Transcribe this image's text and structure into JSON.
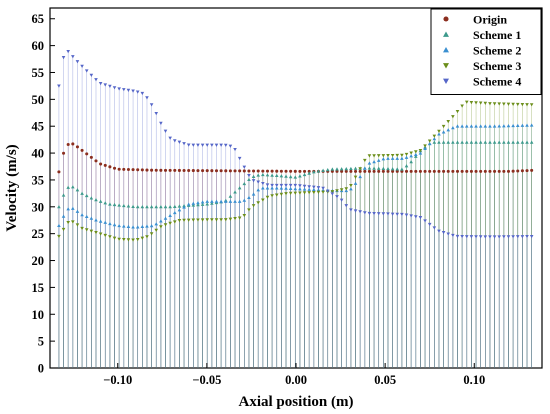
{
  "chart_data": {
    "type": "scatter",
    "xlabel": "Axial position (m)",
    "ylabel": "Velocity (m/s)",
    "xlim": [
      -0.138,
      0.138
    ],
    "ylim": [
      0,
      67
    ],
    "x_ticks": [
      -0.1,
      -0.05,
      0.0,
      0.05,
      0.1
    ],
    "x_tick_labels": [
      "−0.10",
      "−0.05",
      "0.00",
      "0.05",
      "0.10"
    ],
    "y_ticks": [
      0,
      5,
      10,
      15,
      20,
      25,
      30,
      35,
      40,
      45,
      50,
      55,
      60,
      65
    ],
    "y_tick_labels": [
      "0",
      "5",
      "10",
      "15",
      "20",
      "25",
      "30",
      "35",
      "40",
      "45",
      "50",
      "55",
      "60",
      "65"
    ],
    "drop_lines": true,
    "legend": {
      "position": "top-right"
    },
    "series": [
      {
        "name": "Origin",
        "color": "#8b2e1f",
        "marker": "circle",
        "points": [
          [
            -0.133,
            36.5
          ],
          [
            -0.13,
            40.5
          ],
          [
            -0.127,
            42.0
          ],
          [
            -0.124,
            41.5
          ],
          [
            -0.12,
            40.5
          ],
          [
            -0.116,
            39.5
          ],
          [
            -0.11,
            38.0
          ],
          [
            -0.1,
            37.0
          ],
          [
            -0.08,
            36.8
          ],
          [
            -0.04,
            36.7
          ],
          [
            0.0,
            36.6
          ],
          [
            0.04,
            36.6
          ],
          [
            0.08,
            36.6
          ],
          [
            0.12,
            36.6
          ],
          [
            0.134,
            36.8
          ]
        ]
      },
      {
        "name": "Scheme 1",
        "color": "#3d9a8c",
        "marker": "triangle-up",
        "points": [
          [
            -0.133,
            30.0
          ],
          [
            -0.13,
            32.5
          ],
          [
            -0.127,
            34.0
          ],
          [
            -0.124,
            33.5
          ],
          [
            -0.12,
            32.5
          ],
          [
            -0.114,
            31.5
          ],
          [
            -0.105,
            30.5
          ],
          [
            -0.09,
            30.0
          ],
          [
            -0.07,
            30.0
          ],
          [
            -0.05,
            30.5
          ],
          [
            -0.04,
            31.0
          ],
          [
            -0.03,
            34.0
          ],
          [
            -0.025,
            35.5
          ],
          [
            -0.02,
            36.0
          ],
          [
            -0.01,
            35.8
          ],
          [
            0.0,
            35.5
          ],
          [
            0.01,
            36.5
          ],
          [
            0.02,
            37.0
          ],
          [
            0.04,
            37.2
          ],
          [
            0.06,
            37.0
          ],
          [
            0.065,
            38.5
          ],
          [
            0.07,
            40.5
          ],
          [
            0.076,
            42.0
          ],
          [
            0.09,
            42.0
          ],
          [
            0.11,
            42.0
          ],
          [
            0.134,
            42.0
          ]
        ]
      },
      {
        "name": "Scheme 2",
        "color": "#3a8fd0",
        "marker": "triangle-up",
        "points": [
          [
            -0.133,
            26.5
          ],
          [
            -0.13,
            28.5
          ],
          [
            -0.127,
            30.0
          ],
          [
            -0.124,
            29.5
          ],
          [
            -0.12,
            28.5
          ],
          [
            -0.112,
            27.5
          ],
          [
            -0.1,
            26.5
          ],
          [
            -0.09,
            26.2
          ],
          [
            -0.08,
            26.5
          ],
          [
            -0.07,
            28.5
          ],
          [
            -0.06,
            30.5
          ],
          [
            -0.05,
            31.0
          ],
          [
            -0.03,
            31.0
          ],
          [
            -0.025,
            32.0
          ],
          [
            -0.02,
            33.5
          ],
          [
            -0.01,
            33.5
          ],
          [
            0.01,
            33.2
          ],
          [
            0.02,
            33.0
          ],
          [
            0.03,
            33.0
          ],
          [
            0.035,
            35.0
          ],
          [
            0.04,
            38.0
          ],
          [
            0.05,
            39.0
          ],
          [
            0.06,
            39.0
          ],
          [
            0.07,
            40.0
          ],
          [
            0.08,
            43.5
          ],
          [
            0.09,
            45.0
          ],
          [
            0.11,
            45.0
          ],
          [
            0.134,
            45.2
          ]
        ]
      },
      {
        "name": "Scheme 3",
        "color": "#6b8e1a",
        "marker": "triangle-down",
        "points": [
          [
            -0.133,
            24.5
          ],
          [
            -0.13,
            26.0
          ],
          [
            -0.127,
            27.5
          ],
          [
            -0.124,
            27.0
          ],
          [
            -0.12,
            26.0
          ],
          [
            -0.11,
            25.0
          ],
          [
            -0.1,
            24.0
          ],
          [
            -0.09,
            23.8
          ],
          [
            -0.083,
            24.5
          ],
          [
            -0.075,
            26.5
          ],
          [
            -0.065,
            27.5
          ],
          [
            -0.05,
            27.6
          ],
          [
            -0.04,
            27.6
          ],
          [
            -0.03,
            28.0
          ],
          [
            -0.025,
            30.0
          ],
          [
            -0.015,
            32.0
          ],
          [
            -0.005,
            32.5
          ],
          [
            0.02,
            32.8
          ],
          [
            0.03,
            33.5
          ],
          [
            0.035,
            36.5
          ],
          [
            0.04,
            39.5
          ],
          [
            0.06,
            39.6
          ],
          [
            0.07,
            40.5
          ],
          [
            0.08,
            44.0
          ],
          [
            0.09,
            47.5
          ],
          [
            0.095,
            49.5
          ],
          [
            0.11,
            49.2
          ],
          [
            0.134,
            49.0
          ]
        ]
      },
      {
        "name": "Scheme 4",
        "color": "#5566c8",
        "marker": "triangle-down",
        "points": [
          [
            -0.133,
            52.5
          ],
          [
            -0.131,
            57.5
          ],
          [
            -0.128,
            59.0
          ],
          [
            -0.124,
            57.5
          ],
          [
            -0.118,
            55.5
          ],
          [
            -0.11,
            53.0
          ],
          [
            -0.1,
            52.0
          ],
          [
            -0.09,
            51.5
          ],
          [
            -0.085,
            51.0
          ],
          [
            -0.08,
            48.5
          ],
          [
            -0.075,
            45.0
          ],
          [
            -0.07,
            42.5
          ],
          [
            -0.06,
            41.5
          ],
          [
            -0.04,
            41.5
          ],
          [
            -0.035,
            41.2
          ],
          [
            -0.03,
            38.0
          ],
          [
            -0.025,
            35.0
          ],
          [
            -0.015,
            34.0
          ],
          [
            0.0,
            34.0
          ],
          [
            0.015,
            33.5
          ],
          [
            0.025,
            31.5
          ],
          [
            0.03,
            29.5
          ],
          [
            0.04,
            28.8
          ],
          [
            0.06,
            28.6
          ],
          [
            0.07,
            28.0
          ],
          [
            0.08,
            25.5
          ],
          [
            0.09,
            24.5
          ],
          [
            0.11,
            24.4
          ],
          [
            0.134,
            24.5
          ]
        ]
      }
    ]
  }
}
